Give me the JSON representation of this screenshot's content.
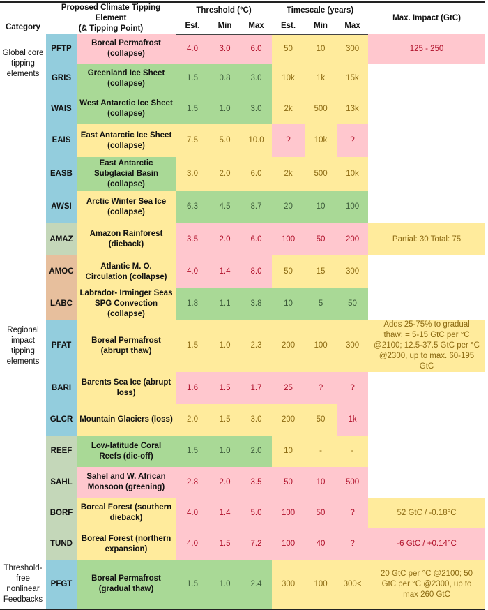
{
  "header": {
    "category": "Category",
    "element_line1": "Proposed Climate Tipping Element",
    "element_line2": "(& Tipping Point)",
    "threshold": "Threshold (°C)",
    "timescale": "Timescale (years)",
    "impact": "Max. Impact (GtC)",
    "est": "Est.",
    "min": "Min",
    "max": "Max"
  },
  "categories": {
    "global": "Global core tipping elements",
    "regional": "Regional impact tipping elements",
    "threshold_free": "Threshold-free nonlinear Feedbacks"
  },
  "colors": {
    "pink": "#ffc7ce",
    "yellow": "#ffeb9c",
    "green": "#a9d996",
    "blue": "#93cddd",
    "sage": "#c4d7b9",
    "orange": "#e7bf9d"
  },
  "rows": [
    {
      "code": "PFTP",
      "code_color": "blue",
      "name": "Boreal Permafrost (collapse)",
      "name_c": "p",
      "thr": [
        "4.0",
        "3.0",
        "6.0"
      ],
      "thr_c": [
        "p",
        "p",
        "p"
      ],
      "ts": [
        "50",
        "10",
        "300"
      ],
      "ts_c": [
        "y",
        "y",
        "y"
      ],
      "impact": "125 - 250",
      "impact_c": "p"
    },
    {
      "code": "GRIS",
      "code_color": "blue",
      "name": "Greenland Ice Sheet (collapse)",
      "name_c": "g",
      "thr": [
        "1.5",
        "0.8",
        "3.0"
      ],
      "thr_c": [
        "g",
        "g",
        "g"
      ],
      "ts": [
        "10k",
        "1k",
        "15k"
      ],
      "ts_c": [
        "y",
        "y",
        "y"
      ],
      "impact": "",
      "impact_c": "w"
    },
    {
      "code": "WAIS",
      "code_color": "blue",
      "name": "West Antarctic Ice Sheet (collapse)",
      "name_c": "g",
      "thr": [
        "1.5",
        "1.0",
        "3.0"
      ],
      "thr_c": [
        "g",
        "g",
        "g"
      ],
      "ts": [
        "2k",
        "500",
        "13k"
      ],
      "ts_c": [
        "y",
        "y",
        "y"
      ],
      "impact": "",
      "impact_c": "w"
    },
    {
      "code": "EAIS",
      "code_color": "blue",
      "name": "East Antarctic Ice Sheet (collapse)",
      "name_c": "y",
      "thr": [
        "7.5",
        "5.0",
        "10.0"
      ],
      "thr_c": [
        "y",
        "y",
        "y"
      ],
      "ts": [
        "?",
        "10k",
        "?"
      ],
      "ts_c": [
        "p",
        "y",
        "p"
      ],
      "impact": "",
      "impact_c": "w"
    },
    {
      "code": "EASB",
      "code_color": "blue",
      "name": "East Antarctic Subglacial Basin (collapse)",
      "name_c": "g",
      "thr": [
        "3.0",
        "2.0",
        "6.0"
      ],
      "thr_c": [
        "y",
        "y",
        "y"
      ],
      "ts": [
        "2k",
        "500",
        "10k"
      ],
      "ts_c": [
        "y",
        "y",
        "y"
      ],
      "impact": "",
      "impact_c": "w"
    },
    {
      "code": "AWSI",
      "code_color": "blue",
      "name": "Arctic Winter Sea Ice (collapse)",
      "name_c": "y",
      "thr": [
        "6.3",
        "4.5",
        "8.7"
      ],
      "thr_c": [
        "g",
        "g",
        "g"
      ],
      "ts": [
        "20",
        "10",
        "100"
      ],
      "ts_c": [
        "g",
        "g",
        "g"
      ],
      "impact": "",
      "impact_c": "w"
    },
    {
      "code": "AMAZ",
      "code_color": "sage",
      "name": "Amazon Rainforest (dieback)",
      "name_c": "y",
      "thr": [
        "3.5",
        "2.0",
        "6.0"
      ],
      "thr_c": [
        "p",
        "p",
        "p"
      ],
      "ts": [
        "100",
        "50",
        "200"
      ],
      "ts_c": [
        "p",
        "p",
        "p"
      ],
      "impact": "Partial: 30 Total: 75",
      "impact_c": "y"
    },
    {
      "code": "AMOC",
      "code_color": "orange",
      "name": "Atlantic M. O. Circulation (collapse)",
      "name_c": "y",
      "thr": [
        "4.0",
        "1.4",
        "8.0"
      ],
      "thr_c": [
        "p",
        "p",
        "p"
      ],
      "ts": [
        "50",
        "15",
        "300"
      ],
      "ts_c": [
        "y",
        "y",
        "y"
      ],
      "impact": "",
      "impact_c": "w"
    },
    {
      "code": "LABC",
      "code_color": "orange",
      "name": "Labrador- Irminger Seas SPG Convection (collapse)",
      "name_c": "y",
      "thr": [
        "1.8",
        "1.1",
        "3.8"
      ],
      "thr_c": [
        "g",
        "g",
        "g"
      ],
      "ts": [
        "10",
        "5",
        "50"
      ],
      "ts_c": [
        "g",
        "g",
        "g"
      ],
      "impact": "",
      "impact_c": "w"
    },
    {
      "code": "PFAT",
      "code_color": "blue",
      "name": "Boreal Permafrost (abrupt thaw)",
      "name_c": "y",
      "thr": [
        "1.5",
        "1.0",
        "2.3"
      ],
      "thr_c": [
        "y",
        "y",
        "y"
      ],
      "ts": [
        "200",
        "100",
        "300"
      ],
      "ts_c": [
        "y",
        "y",
        "y"
      ],
      "impact": "Adds 25-75% to gradual thaw: = 5-15 GtC per °C @2100; 12.5-37.5 GtC per °C @2300, up to max. 60-195 GtC",
      "impact_c": "y"
    },
    {
      "code": "BARI",
      "code_color": "blue",
      "name": "Barents Sea Ice (abrupt loss)",
      "name_c": "y",
      "thr": [
        "1.6",
        "1.5",
        "1.7"
      ],
      "thr_c": [
        "p",
        "p",
        "p"
      ],
      "ts": [
        "25",
        "?",
        "?"
      ],
      "ts_c": [
        "p",
        "p",
        "p"
      ],
      "impact": "",
      "impact_c": "w"
    },
    {
      "code": "GLCR",
      "code_color": "blue",
      "name": "Mountain Glaciers (loss)",
      "name_c": "y",
      "thr": [
        "2.0",
        "1.5",
        "3.0"
      ],
      "thr_c": [
        "y",
        "y",
        "y"
      ],
      "ts": [
        "200",
        "50",
        "1k"
      ],
      "ts_c": [
        "y",
        "y",
        "p"
      ],
      "impact": "",
      "impact_c": "w"
    },
    {
      "code": "REEF",
      "code_color": "sage",
      "name": "Low-latitude Coral Reefs (die-off)",
      "name_c": "g",
      "thr": [
        "1.5",
        "1.0",
        "2.0"
      ],
      "thr_c": [
        "g",
        "g",
        "g"
      ],
      "ts": [
        "10",
        "-",
        "-"
      ],
      "ts_c": [
        "y",
        "y",
        "y"
      ],
      "impact": "",
      "impact_c": "w"
    },
    {
      "code": "SAHL",
      "code_color": "sage",
      "name": "Sahel and W. African Monsoon (greening)",
      "name_c": "p",
      "thr": [
        "2.8",
        "2.0",
        "3.5"
      ],
      "thr_c": [
        "p",
        "p",
        "p"
      ],
      "ts": [
        "50",
        "10",
        "500"
      ],
      "ts_c": [
        "p",
        "p",
        "p"
      ],
      "impact": "",
      "impact_c": "w"
    },
    {
      "code": "BORF",
      "code_color": "sage",
      "name": "Boreal Forest (southern dieback)",
      "name_c": "y",
      "thr": [
        "4.0",
        "1.4",
        "5.0"
      ],
      "thr_c": [
        "p",
        "p",
        "p"
      ],
      "ts": [
        "100",
        "50",
        "?"
      ],
      "ts_c": [
        "p",
        "p",
        "p"
      ],
      "impact": "52 GtC / -0.18°C",
      "impact_c": "y"
    },
    {
      "code": "TUND",
      "code_color": "sage",
      "name": "Boreal Forest (northern expansion)",
      "name_c": "y",
      "thr": [
        "4.0",
        "1.5",
        "7.2"
      ],
      "thr_c": [
        "p",
        "p",
        "p"
      ],
      "ts": [
        "100",
        "40",
        "?"
      ],
      "ts_c": [
        "p",
        "p",
        "p"
      ],
      "impact": "-6 GtC / +0.14°C",
      "impact_c": "p"
    },
    {
      "code": "PFGT",
      "code_color": "blue",
      "name": "Boreal Permafrost (gradual thaw)",
      "name_c": "g",
      "thr": [
        "1.5",
        "1.0",
        "2.4"
      ],
      "thr_c": [
        "g",
        "g",
        "g"
      ],
      "ts": [
        "300",
        "100",
        "300<"
      ],
      "ts_c": [
        "y",
        "y",
        "y"
      ],
      "impact": "20 GtC per °C @2100; 50 GtC per °C @2300, up to max 260 GtC",
      "impact_c": "y"
    }
  ]
}
